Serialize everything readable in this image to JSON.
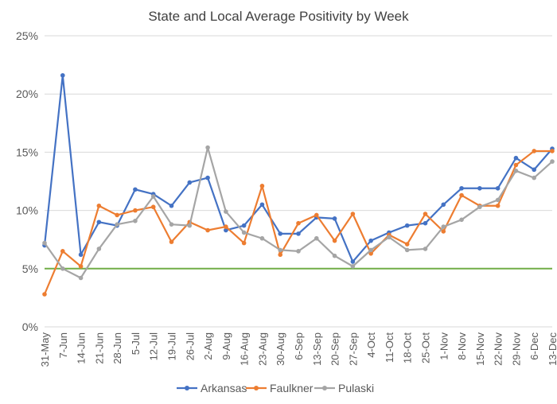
{
  "chart_data": {
    "type": "line",
    "title": "State and Local Average Positivity by Week",
    "xlabel": "",
    "ylabel": "",
    "ylim": [
      0,
      25
    ],
    "yticks": [
      0,
      5,
      10,
      15,
      20,
      25
    ],
    "ytick_labels": [
      "0%",
      "5%",
      "10%",
      "15%",
      "20%",
      "25%"
    ],
    "grid": true,
    "legend_position": "bottom",
    "categories": [
      "31-May",
      "7-Jun",
      "14-Jun",
      "21-Jun",
      "28-Jun",
      "5-Jul",
      "12-Jul",
      "19-Jul",
      "26-Jul",
      "2-Aug",
      "9-Aug",
      "16-Aug",
      "23-Aug",
      "30-Aug",
      "6-Sep",
      "13-Sep",
      "20-Sep",
      "27-Sep",
      "4-Oct",
      "11-Oct",
      "18-Oct",
      "25-Oct",
      "1-Nov",
      "8-Nov",
      "15-Nov",
      "22-Nov",
      "29-Nov",
      "6-Dec",
      "13-Dec"
    ],
    "series": [
      {
        "name": "Arkansas",
        "color": "#4472c4",
        "values": [
          7.0,
          21.6,
          6.2,
          9.0,
          8.7,
          11.8,
          11.4,
          10.4,
          12.4,
          12.8,
          8.3,
          8.7,
          10.5,
          8.0,
          8.0,
          9.4,
          9.3,
          5.6,
          7.4,
          8.1,
          8.7,
          8.9,
          10.5,
          11.9,
          11.9,
          11.9,
          14.5,
          13.5,
          15.3
        ]
      },
      {
        "name": "Faulkner",
        "color": "#ed7d31",
        "values": [
          2.8,
          6.5,
          5.2,
          10.4,
          9.6,
          10.0,
          10.3,
          7.3,
          9.0,
          8.3,
          8.6,
          7.2,
          12.1,
          6.2,
          8.9,
          9.6,
          7.4,
          9.7,
          6.3,
          7.9,
          7.1,
          9.7,
          8.2,
          11.3,
          10.4,
          10.4,
          13.9,
          15.1,
          15.1
        ]
      },
      {
        "name": "Pulaski",
        "color": "#a5a5a5",
        "values": [
          7.2,
          5.0,
          4.2,
          6.7,
          8.8,
          9.1,
          11.2,
          8.8,
          8.7,
          15.4,
          9.9,
          8.1,
          7.6,
          6.6,
          6.5,
          7.6,
          6.1,
          5.2,
          6.6,
          7.7,
          6.6,
          6.7,
          8.6,
          9.2,
          10.3,
          10.9,
          13.4,
          12.8,
          14.2
        ]
      }
    ],
    "reference_line": {
      "value": 5,
      "color": "#70ad47"
    }
  }
}
